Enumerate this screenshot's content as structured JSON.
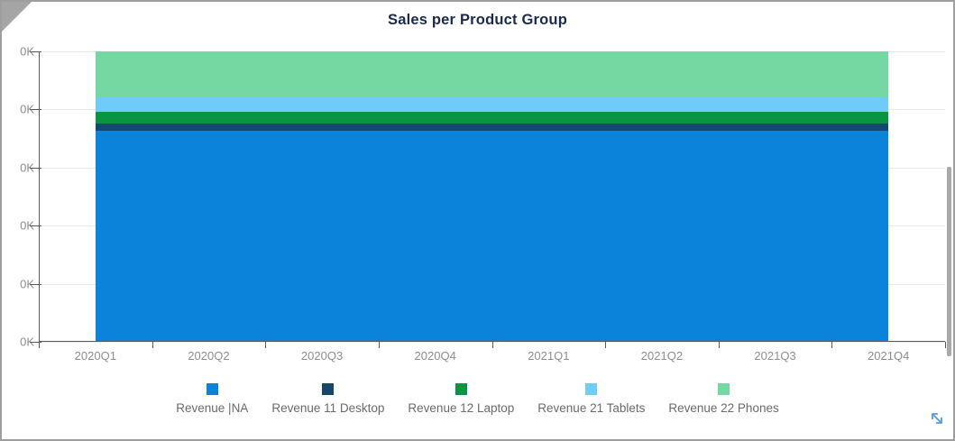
{
  "widget": {
    "title": "Sales per Product Group"
  },
  "chart_data": {
    "type": "area",
    "stacked": true,
    "title": "Sales per Product Group",
    "categories": [
      "2020Q1",
      "2020Q2",
      "2020Q3",
      "2020Q4",
      "2021Q1",
      "2021Q2",
      "2021Q3",
      "2021Q4"
    ],
    "series": [
      {
        "name": "Revenue |NA",
        "color": "#0b83da",
        "values": [
          3.63,
          3.63,
          3.63,
          3.63,
          3.63,
          3.63,
          3.63,
          3.63
        ]
      },
      {
        "name": "Revenue 11 Desktop",
        "color": "#14466e",
        "values": [
          0.12,
          0.12,
          0.12,
          0.12,
          0.12,
          0.12,
          0.12,
          0.12
        ]
      },
      {
        "name": "Revenue 12 Laptop",
        "color": "#089442",
        "values": [
          0.2,
          0.2,
          0.2,
          0.2,
          0.2,
          0.2,
          0.2,
          0.2
        ]
      },
      {
        "name": "Revenue 21 Tablets",
        "color": "#6fcbf8",
        "values": [
          0.26,
          0.26,
          0.26,
          0.26,
          0.26,
          0.26,
          0.26,
          0.26
        ]
      },
      {
        "name": "Revenue 22 Phones",
        "color": "#75d8a2",
        "values": [
          0.79,
          0.79,
          0.79,
          0.79,
          0.79,
          0.79,
          0.79,
          0.79
        ]
      }
    ],
    "y_axis": {
      "tick_labels": [
        "0K",
        "0K",
        "0K",
        "0K",
        "0K",
        "0K"
      ],
      "ylim": [
        0,
        5
      ],
      "tick_step": 1
    },
    "xlabel": "",
    "ylabel": "",
    "grid": true,
    "legend_position": "bottom"
  },
  "colors": {
    "title_text": "#1b2b50",
    "axis_text": "#8f8f8f",
    "legend_text": "#6b6b6b",
    "gridline": "#e9e9e9",
    "axis_line": "#5a5a5a",
    "border": "#9e9e9e",
    "resize_icon": "#4f9fe0"
  },
  "icons": {
    "corner_fold": "folded-corner",
    "resize": "diagonal-expand-arrow"
  }
}
